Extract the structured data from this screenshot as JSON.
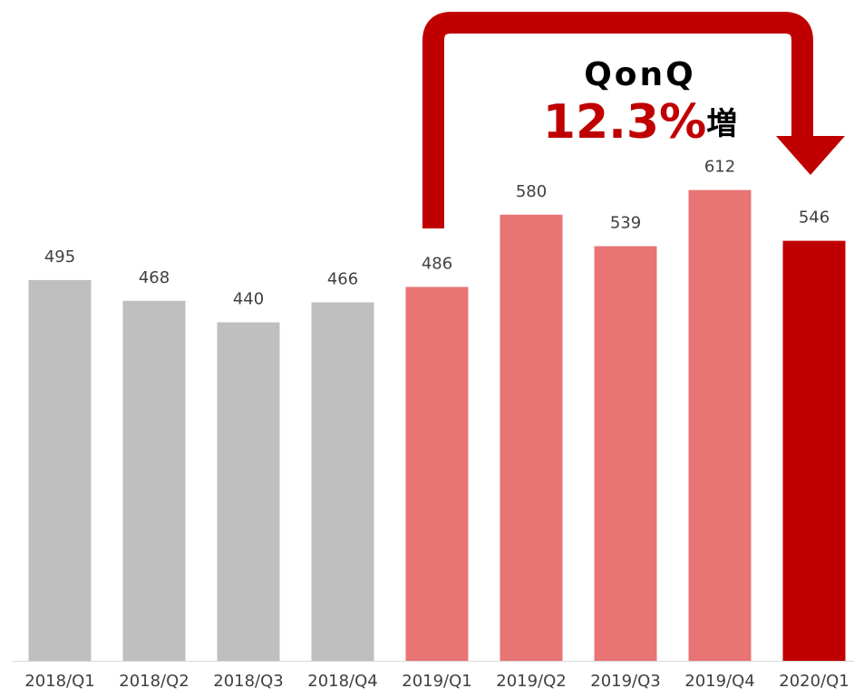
{
  "chart_data": {
    "type": "bar",
    "categories": [
      "2018/Q1",
      "2018/Q2",
      "2018/Q3",
      "2018/Q4",
      "2019/Q1",
      "2019/Q2",
      "2019/Q3",
      "2019/Q4",
      "2020/Q1"
    ],
    "values": [
      495,
      468,
      440,
      466,
      486,
      580,
      539,
      612,
      546
    ],
    "colors": [
      "#bfbfbf",
      "#bfbfbf",
      "#bfbfbf",
      "#bfbfbf",
      "#e87474",
      "#e87474",
      "#e87474",
      "#e87474",
      "#c00000"
    ],
    "ylim": [
      0,
      859
    ],
    "annotation": {
      "title": "QonQ",
      "change": "12.3%",
      "suffix": "増"
    }
  }
}
